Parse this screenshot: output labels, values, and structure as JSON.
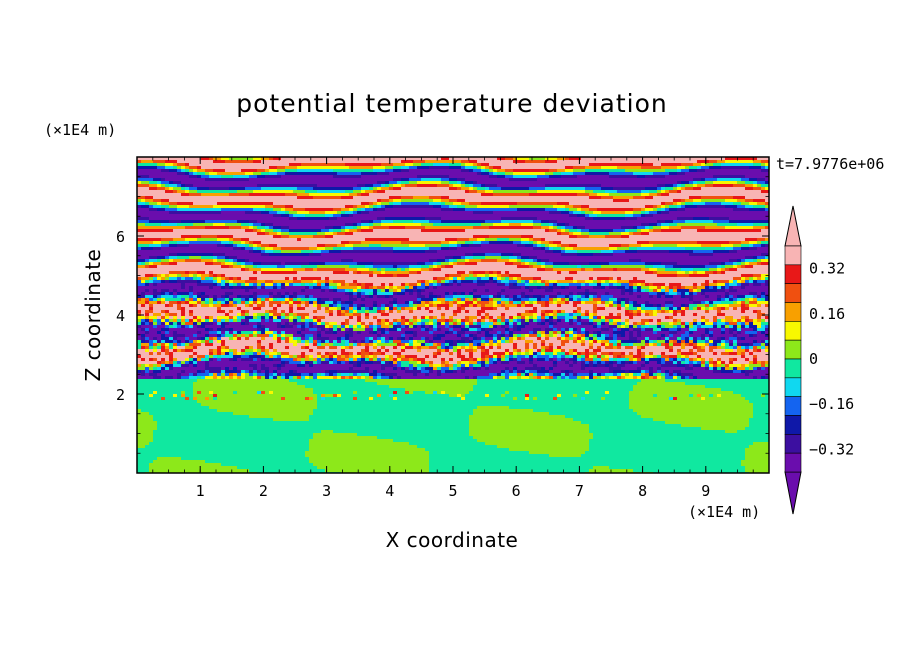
{
  "chart_data": {
    "type": "heatmap",
    "title": "potential temperature deviation",
    "xlabel": "X coordinate",
    "ylabel": "Z coordinate",
    "x_unit": "(×1E4 m)",
    "y_unit": "(×1E4 m)",
    "time_label": "t=7.9776e+06",
    "xlim": [
      0,
      10
    ],
    "ylim": [
      0,
      8
    ],
    "x_ticks": [
      "1",
      "2",
      "3",
      "4",
      "5",
      "6",
      "7",
      "8",
      "9"
    ],
    "y_ticks": [
      "2",
      "4",
      "6"
    ],
    "colorbar": {
      "tick_labels": [
        "0.32",
        "0.16",
        "0",
        "−0.16",
        "−0.32"
      ],
      "tick_values": [
        0.32,
        0.16,
        0,
        -0.16,
        -0.32
      ],
      "levels": [
        -0.4,
        -0.32,
        -0.24,
        -0.16,
        -0.08,
        0,
        0.08,
        0.16,
        0.24,
        0.32,
        0.4
      ],
      "colors": [
        "#6a0dad",
        "#3c0fa0",
        "#0f18a8",
        "#1464f0",
        "#10d8f0",
        "#10e8a0",
        "#8de81a",
        "#f8f800",
        "#f8a000",
        "#f05010",
        "#e81818",
        "#f8b4b4"
      ],
      "over_color": "#f8b4b4",
      "under_color": "#6a0dad"
    },
    "regions": [
      {
        "name": "upper layer",
        "z_range": [
          2.4,
          8.0
        ],
        "description": "alternating bands"
      },
      {
        "name": "lower layer",
        "z_range": [
          0,
          2.4
        ],
        "description": "mixed layer"
      }
    ]
  }
}
